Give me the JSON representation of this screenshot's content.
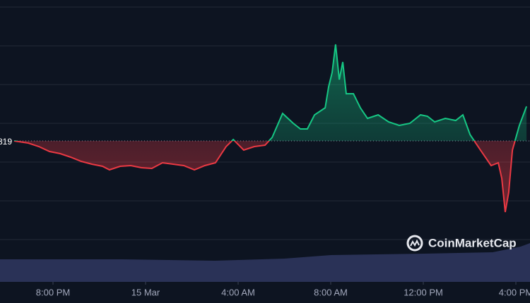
{
  "chart_data": {
    "type": "line",
    "baseline": 819,
    "watermark": "CoinMarketCap",
    "x": [
      0.32,
      0.93,
      1.39,
      1.85,
      2.31,
      2.76,
      3.22,
      3.68,
      4.14,
      4.44,
      4.9,
      5.36,
      5.82,
      6.27,
      6.73,
      7.19,
      7.65,
      8.11,
      8.56,
      9.02,
      9.48,
      9.79,
      10.24,
      10.7,
      11.16,
      11.47,
      11.92,
      12.38,
      12.69,
      12.99,
      13.3,
      13.76,
      13.91,
      14.06,
      14.21,
      14.37,
      14.52,
      14.67,
      14.98,
      15.28,
      15.59,
      16.05,
      16.5,
      16.96,
      17.42,
      17.88,
      18.18,
      18.49,
      18.95,
      19.4,
      19.71,
      20.02,
      20.47,
      20.93,
      21.24,
      21.39,
      21.54,
      21.69,
      21.85,
      22.15,
      22.46
    ],
    "values": [
      819.0,
      818.7,
      818.2,
      817.5,
      817.2,
      816.7,
      816.1,
      815.7,
      815.4,
      814.9,
      815.4,
      815.5,
      815.2,
      815.1,
      815.9,
      815.7,
      815.5,
      814.9,
      815.5,
      815.9,
      818.2,
      819.2,
      817.7,
      818.2,
      818.4,
      819.5,
      822.9,
      821.5,
      820.7,
      820.7,
      822.7,
      823.7,
      826.7,
      828.7,
      832.7,
      827.7,
      830.2,
      825.7,
      825.7,
      823.7,
      822.2,
      822.7,
      821.7,
      821.2,
      821.5,
      822.7,
      822.5,
      821.7,
      822.2,
      821.9,
      822.7,
      819.9,
      817.7,
      815.5,
      815.9,
      813.7,
      808.9,
      811.7,
      817.7,
      821.2,
      823.9
    ],
    "up_color": "#16c784",
    "down_color": "#ea3943",
    "xlim": [
      -0.29,
      22.61
    ],
    "xticks": [
      {
        "value": 2,
        "label": "8:00 PM"
      },
      {
        "value": 6,
        "label": "15 Mar"
      },
      {
        "value": 10,
        "label": "4:00 AM"
      },
      {
        "value": 14,
        "label": "8:00 AM"
      },
      {
        "value": 18,
        "label": "12:00 PM"
      },
      {
        "value": 22,
        "label": "4:00 PM"
      }
    ],
    "ylim": [
      799,
      839
    ],
    "grid": [
      838,
      832.5,
      827,
      821.5,
      816,
      810.5,
      805
    ],
    "volume": {
      "x": [
        -0.29,
        5,
        9,
        12,
        14,
        18,
        21,
        22.2,
        22.61
      ],
      "values": [
        32,
        32,
        30,
        33,
        38,
        40,
        42,
        50,
        55
      ],
      "ylim": [
        0,
        57
      ],
      "color": "#2a3257"
    }
  }
}
